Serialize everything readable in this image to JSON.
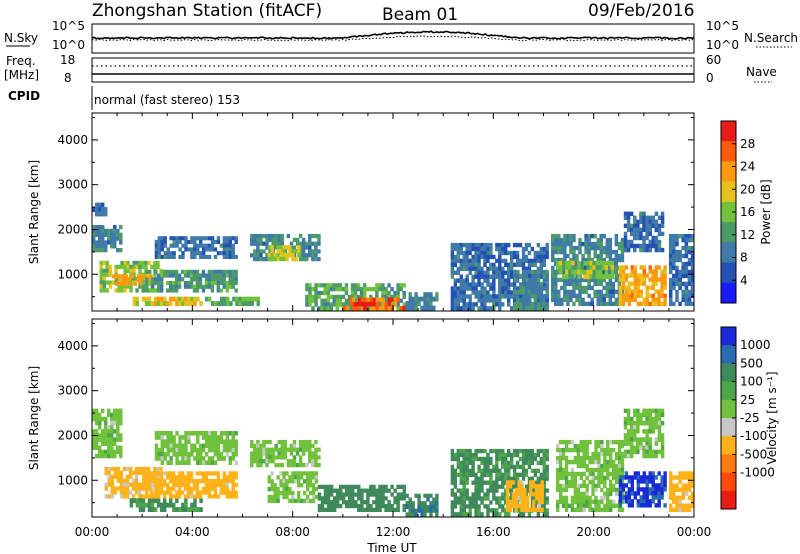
{
  "header": {
    "station": "Zhongshan Station (fitACF)",
    "beam": "Beam 01",
    "date": "09/Feb/2016"
  },
  "strip_nsky": {
    "label": "N.Sky",
    "ticks": [
      "10^5",
      "10^0"
    ],
    "right_label": "N.Search"
  },
  "strip_freq": {
    "label_line1": "Freq.",
    "label_line2": "[MHz]",
    "ticks": [
      "18",
      "8"
    ],
    "right_ticks": [
      "60",
      "0"
    ],
    "right_label": "Nave"
  },
  "strip_cpid": {
    "label": "CPID",
    "mode_text": "normal (fast stereo) 153"
  },
  "chart_data": [
    {
      "type": "heatmap",
      "name": "Power",
      "ylabel": "Slant Range [km]",
      "yticks": [
        1000,
        2000,
        3000,
        4000
      ],
      "ylim": [
        180,
        4600
      ],
      "xlim": [
        0,
        24
      ],
      "colorbar_label": "Power [dB]",
      "colorbar_ticks": [
        4,
        8,
        12,
        16,
        20,
        24,
        28
      ],
      "colorbar_range": [
        0,
        32
      ],
      "colors": [
        "#1a1aff",
        "#2352b4",
        "#3f7aa8",
        "#4c9a6a",
        "#70c13c",
        "#e8c21c",
        "#ff9a10",
        "#ff5b0c",
        "#e81c16"
      ],
      "regions": [
        {
          "x": [
            0.0,
            0.6
          ],
          "y": [
            2300,
            2600
          ],
          "v": 8
        },
        {
          "x": [
            0.0,
            1.2
          ],
          "y": [
            1500,
            2100
          ],
          "v": 10
        },
        {
          "x": [
            0.3,
            2.8
          ],
          "y": [
            600,
            1300
          ],
          "v": 16
        },
        {
          "x": [
            0.8,
            2.4
          ],
          "y": [
            750,
            1000
          ],
          "v": 22
        },
        {
          "x": [
            1.5,
            4.4
          ],
          "y": [
            300,
            500
          ],
          "v": 20
        },
        {
          "x": [
            2.5,
            5.8
          ],
          "y": [
            1350,
            1850
          ],
          "v": 8
        },
        {
          "x": [
            2.0,
            5.8
          ],
          "y": [
            600,
            1100
          ],
          "v": 12
        },
        {
          "x": [
            4.5,
            6.8
          ],
          "y": [
            300,
            500
          ],
          "v": 14
        },
        {
          "x": [
            6.3,
            9.1
          ],
          "y": [
            1300,
            1900
          ],
          "v": 10
        },
        {
          "x": [
            7.0,
            8.3
          ],
          "y": [
            1300,
            1650
          ],
          "v": 18
        },
        {
          "x": [
            8.5,
            12.5
          ],
          "y": [
            200,
            800
          ],
          "v": 13
        },
        {
          "x": [
            10.0,
            12.5
          ],
          "y": [
            200,
            480
          ],
          "v": 26
        },
        {
          "x": [
            10.3,
            11.3
          ],
          "y": [
            200,
            380
          ],
          "v": 30
        },
        {
          "x": [
            12.5,
            13.8
          ],
          "y": [
            200,
            600
          ],
          "v": 10
        },
        {
          "x": [
            14.3,
            18.2
          ],
          "y": [
            200,
            1700
          ],
          "v": 8
        },
        {
          "x": [
            16.8,
            18.2
          ],
          "y": [
            200,
            1100
          ],
          "v": 10
        },
        {
          "x": [
            18.3,
            21.2
          ],
          "y": [
            300,
            1900
          ],
          "v": 10
        },
        {
          "x": [
            18.5,
            20.8
          ],
          "y": [
            900,
            1300
          ],
          "v": 16
        },
        {
          "x": [
            21.0,
            22.9
          ],
          "y": [
            300,
            1200
          ],
          "v": 22
        },
        {
          "x": [
            21.2,
            22.8
          ],
          "y": [
            1500,
            2400
          ],
          "v": 8
        },
        {
          "x": [
            23.0,
            24.0
          ],
          "y": [
            300,
            1900
          ],
          "v": 8
        }
      ]
    },
    {
      "type": "heatmap",
      "name": "Velocity",
      "ylabel": "Slant Range [km]",
      "yticks": [
        1000,
        2000,
        3000,
        4000
      ],
      "ylim": [
        180,
        4600
      ],
      "xlim": [
        0,
        24
      ],
      "colorbar_label": "Velocity [m s⁻¹]",
      "colorbar_ticks": [
        "1000",
        "500",
        "100",
        "25",
        "-25",
        "-100",
        "-500",
        "-1000"
      ],
      "colorbar_values": [
        1000,
        500,
        100,
        25,
        -25,
        -100,
        -500,
        -1000
      ],
      "colors": [
        "#1a2ad8",
        "#2a6ab0",
        "#3f8a5a",
        "#4ea64a",
        "#70c13c",
        "#c8c8c8",
        "#ffb21a",
        "#ff7a10",
        "#ff4a0c",
        "#e81c16"
      ],
      "regions": [
        {
          "x": [
            0.0,
            1.2
          ],
          "y": [
            1500,
            2600
          ],
          "v": 0
        },
        {
          "x": [
            0.5,
            2.8
          ],
          "y": [
            600,
            1300
          ],
          "v": -150
        },
        {
          "x": [
            1.5,
            4.4
          ],
          "y": [
            300,
            600
          ],
          "v": 150
        },
        {
          "x": [
            2.5,
            5.8
          ],
          "y": [
            1350,
            2100
          ],
          "v": 0
        },
        {
          "x": [
            2.0,
            5.8
          ],
          "y": [
            600,
            1200
          ],
          "v": -200
        },
        {
          "x": [
            6.3,
            9.1
          ],
          "y": [
            1300,
            1900
          ],
          "v": 0
        },
        {
          "x": [
            7.0,
            9.0
          ],
          "y": [
            500,
            1200
          ],
          "v": 0
        },
        {
          "x": [
            9.0,
            12.5
          ],
          "y": [
            300,
            900
          ],
          "v": 300
        },
        {
          "x": [
            12.5,
            13.8
          ],
          "y": [
            200,
            700
          ],
          "v": 400
        },
        {
          "x": [
            14.3,
            18.2
          ],
          "y": [
            200,
            1700
          ],
          "v": 150
        },
        {
          "x": [
            16.5,
            18.0
          ],
          "y": [
            300,
            1000
          ],
          "v": -200
        },
        {
          "x": [
            18.5,
            21.2
          ],
          "y": [
            300,
            1900
          ],
          "v": 0
        },
        {
          "x": [
            21.0,
            22.9
          ],
          "y": [
            400,
            1200
          ],
          "v": 1200
        },
        {
          "x": [
            21.2,
            22.8
          ],
          "y": [
            1500,
            2600
          ],
          "v": 0
        },
        {
          "x": [
            23.0,
            24.0
          ],
          "y": [
            300,
            1200
          ],
          "v": -200
        }
      ]
    }
  ],
  "x_axis": {
    "ticks": [
      "00:00",
      "04:00",
      "08:00",
      "12:00",
      "16:00",
      "20:00",
      "00:00"
    ],
    "label": "Time UT"
  }
}
